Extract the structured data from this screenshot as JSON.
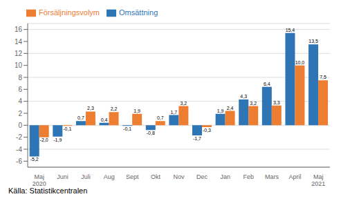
{
  "chart_data": {
    "type": "bar",
    "categories": [
      "Maj\n2020",
      "Juni",
      "Juli",
      "Aug",
      "Sept",
      "Okt",
      "Nov",
      "Dec",
      "Jan",
      "Feb",
      "Mars",
      "April",
      "Maj\n2021"
    ],
    "series": [
      {
        "name": "Omsättning",
        "color": "#2E75B6",
        "values": [
          -5.2,
          -1.9,
          0.7,
          0.4,
          -0.1,
          -0.8,
          1.7,
          -1.7,
          1.9,
          4.3,
          6.4,
          15.4,
          13.5
        ],
        "value_labels": [
          "-5,2",
          "-1,9",
          "0,7",
          "0,4",
          "-0,1",
          "-0,8",
          "1,7",
          "-1,7",
          "1,9",
          "4,3",
          "6,4",
          "15,4",
          "13,5"
        ]
      },
      {
        "name": "Försäljningsvolym",
        "color": "#ED7D31",
        "values": [
          -2.0,
          -0.1,
          2.3,
          2.2,
          1.9,
          0.7,
          3.2,
          -0.3,
          2.4,
          3.2,
          3.3,
          10.0,
          7.5
        ],
        "value_labels": [
          "-2,0",
          "-0,1",
          "2,3",
          "2,2",
          "1,9",
          "0,7",
          "3,2",
          "-0,3",
          "2,4",
          "3,2",
          "3,3",
          "10,0",
          "7,5"
        ]
      }
    ],
    "ylim": [
      -7,
      17
    ],
    "yticks": [
      -6,
      -4,
      -2,
      0,
      2,
      4,
      6,
      8,
      10,
      12,
      14,
      16
    ],
    "grid": true,
    "legend": "upper left",
    "data_labels": true,
    "annotations": [
      "Källa: Statistikcentralen"
    ]
  }
}
